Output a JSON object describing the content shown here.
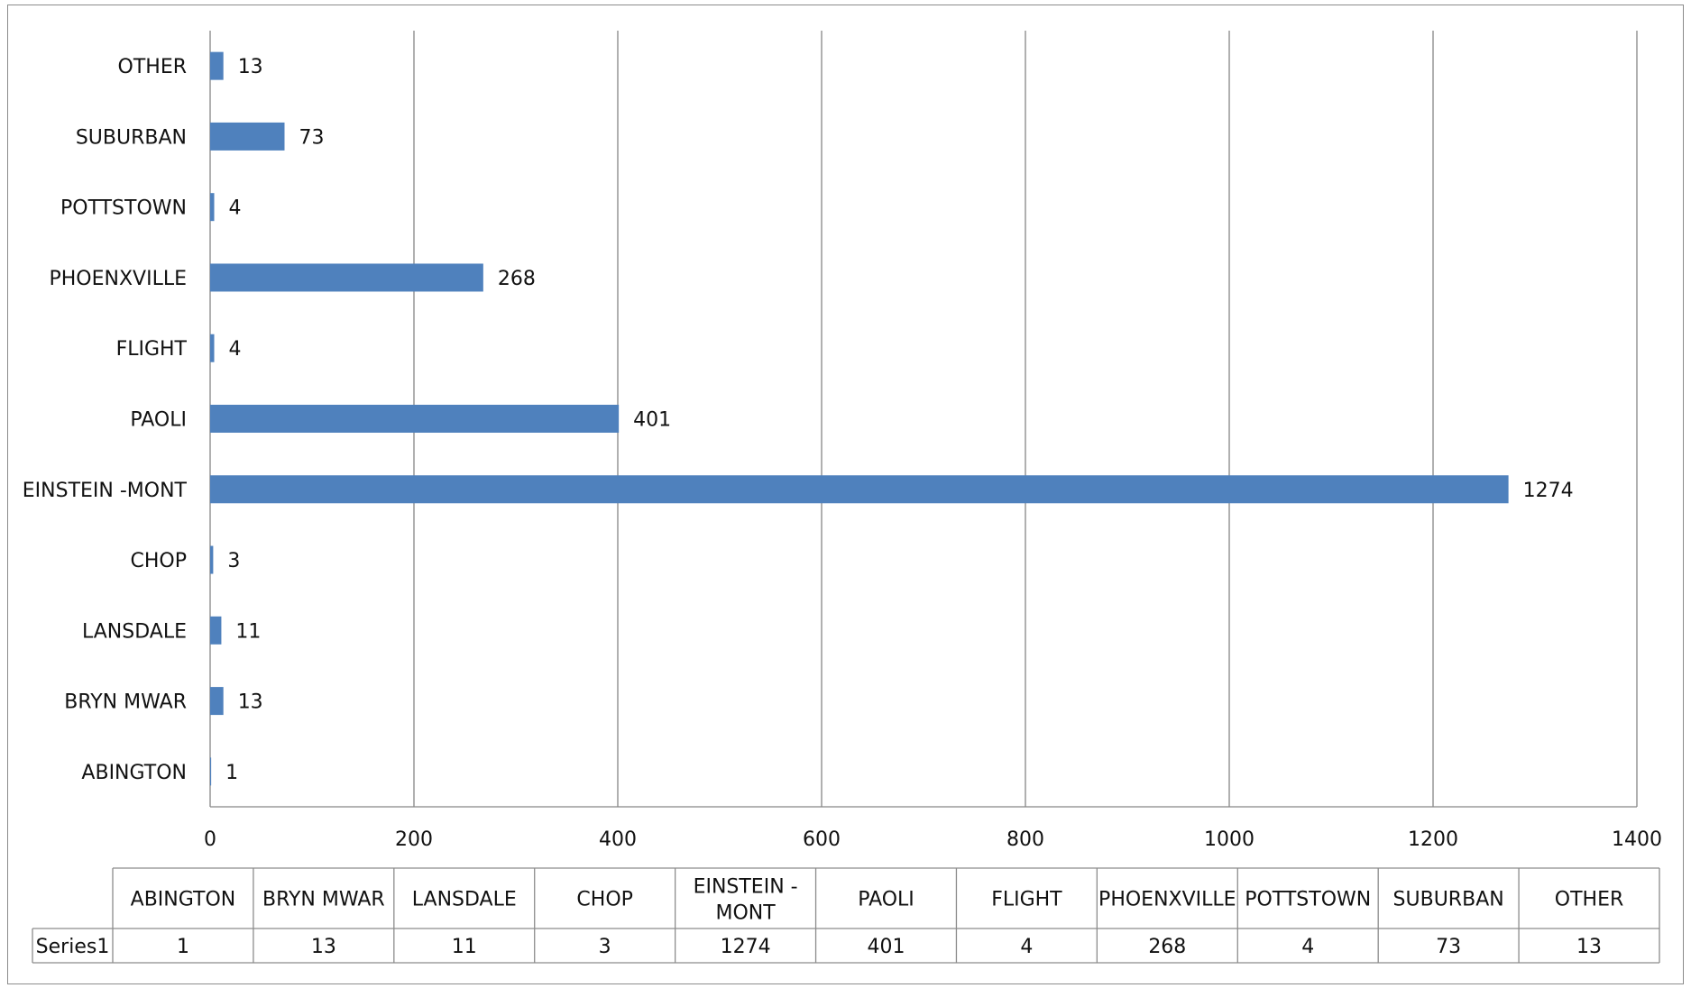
{
  "chart_data": {
    "type": "bar",
    "orientation": "horizontal",
    "categories": [
      "ABINGTON",
      "BRYN MWAR",
      "LANSDALE",
      "CHOP",
      "EINSTEIN -MONT",
      "PAOLI",
      "FLIGHT",
      "PHOENXVILLE",
      "POTTSTOWN",
      "SUBURBAN",
      "OTHER"
    ],
    "table_headers": [
      "ABINGTON",
      "BRYN MWAR",
      "LANSDALE",
      "CHOP",
      "EINSTEIN -\nMONT",
      "PAOLI",
      "FLIGHT",
      "PHOENXVILLE",
      "POTTSTOWN",
      "SUBURBAN",
      "OTHER"
    ],
    "series": [
      {
        "name": "Series1",
        "values": [
          1,
          13,
          11,
          3,
          1274,
          401,
          4,
          268,
          4,
          73,
          13
        ],
        "color": "#4f81bd"
      }
    ],
    "xlim": [
      0,
      1400
    ],
    "xticks": [
      0,
      200,
      400,
      600,
      800,
      1000,
      1200,
      1400
    ],
    "grid": "vertical",
    "data_table": true,
    "data_labels": true,
    "legend": "none"
  }
}
